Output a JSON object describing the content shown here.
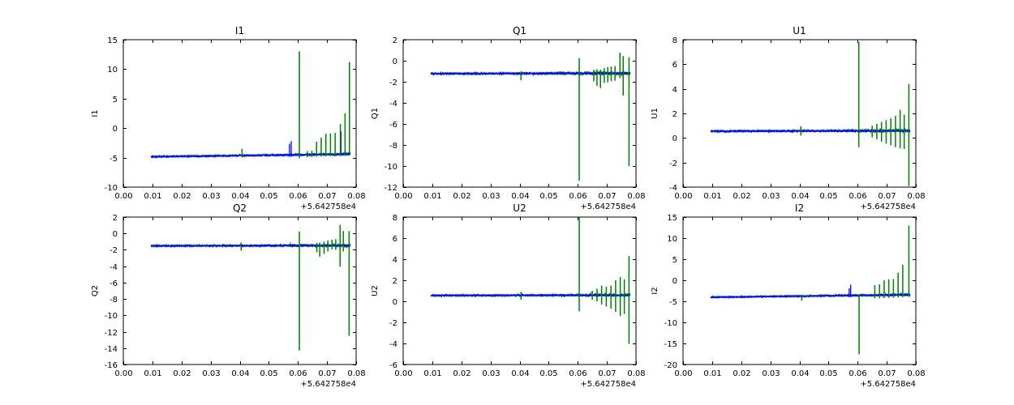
{
  "figure": {
    "background": "#ffffff",
    "x_offset_label": "+5.642758e4",
    "xtick_labels": [
      "0.00",
      "0.01",
      "0.02",
      "0.03",
      "0.04",
      "0.05",
      "0.06",
      "0.07",
      "0.08"
    ],
    "colors": {
      "trace_blue": "#0000ff",
      "trace_green": "#008000",
      "axis": "#000000"
    }
  },
  "chart_data": [
    {
      "type": "line",
      "title": "I1",
      "ylabel": "I1",
      "xlabel": "",
      "x_offset": "+5.642758e4",
      "grid": false,
      "legend": null,
      "xlim": [
        0.0,
        0.08
      ],
      "ylim": [
        -10,
        15
      ],
      "xticks": [
        0.0,
        0.01,
        0.02,
        0.03,
        0.04,
        0.05,
        0.06,
        0.07,
        0.08
      ],
      "xtick_labels": [
        "0.00",
        "0.01",
        "0.02",
        "0.03",
        "0.04",
        "0.05",
        "0.06",
        "0.07",
        "0.08"
      ],
      "yticks": [
        -10,
        -5,
        0,
        5,
        10,
        15
      ],
      "ytick_labels": [
        "-10",
        "-5",
        "0",
        "5",
        "10",
        "15"
      ],
      "x_data_range": [
        0.0095,
        0.078
      ],
      "series": [
        {
          "name": "green-trace",
          "color": "#008000",
          "baseline": [
            -4.83,
            -4.4
          ],
          "noise_amp": 0.17,
          "spikes": [
            [
              0.0408,
              -4.95,
              -3.5
            ],
            [
              0.0605,
              -5.1,
              13.0
            ],
            [
              0.0632,
              -4.9,
              -3.9
            ],
            [
              0.0648,
              -4.9,
              -3.8
            ],
            [
              0.0664,
              -4.8,
              -2.3
            ],
            [
              0.068,
              -4.8,
              -1.6
            ],
            [
              0.0696,
              -4.75,
              -0.95
            ],
            [
              0.0712,
              -4.75,
              -0.9
            ],
            [
              0.0728,
              -4.7,
              -0.8
            ],
            [
              0.0746,
              -4.7,
              0.7
            ],
            [
              0.0762,
              -4.65,
              2.5
            ],
            [
              0.0777,
              -4.6,
              11.2
            ]
          ]
        },
        {
          "name": "blue-trace",
          "color": "#0000ff",
          "baseline": [
            -4.85,
            -4.42
          ],
          "noise_amp": 0.17,
          "spikes": [
            [
              0.0571,
              -4.85,
              -2.65
            ],
            [
              0.0577,
              -4.85,
              -2.2
            ],
            [
              0.0748,
              -4.7,
              -0.55
            ]
          ]
        }
      ]
    },
    {
      "type": "line",
      "title": "Q1",
      "ylabel": "Q1",
      "xlabel": "",
      "x_offset": "+5.642758e4",
      "grid": false,
      "legend": null,
      "xlim": [
        0.0,
        0.08
      ],
      "ylim": [
        -12,
        2
      ],
      "xticks": [
        0.0,
        0.01,
        0.02,
        0.03,
        0.04,
        0.05,
        0.06,
        0.07,
        0.08
      ],
      "xtick_labels": [
        "0.00",
        "0.01",
        "0.02",
        "0.03",
        "0.04",
        "0.05",
        "0.06",
        "0.07",
        "0.08"
      ],
      "yticks": [
        -12,
        -10,
        -8,
        -6,
        -4,
        -2,
        0,
        2
      ],
      "ytick_labels": [
        "-12",
        "-10",
        "-8",
        "-6",
        "-4",
        "-2",
        "0",
        "2"
      ],
      "x_data_range": [
        0.0095,
        0.078
      ],
      "series": [
        {
          "name": "green-trace",
          "color": "#008000",
          "baseline": [
            -1.22,
            -1.18
          ],
          "noise_amp": 0.13,
          "spikes": [
            [
              0.0405,
              -1.85,
              -1.05
            ],
            [
              0.0605,
              -11.4,
              0.25
            ],
            [
              0.0655,
              -1.95,
              -0.85
            ],
            [
              0.0666,
              -2.4,
              -0.8
            ],
            [
              0.0678,
              -2.6,
              -0.85
            ],
            [
              0.0691,
              -2.1,
              -0.7
            ],
            [
              0.0703,
              -2.05,
              -0.6
            ],
            [
              0.0715,
              -1.95,
              -0.55
            ],
            [
              0.0728,
              -1.9,
              -0.5
            ],
            [
              0.0745,
              -1.65,
              0.77
            ],
            [
              0.0756,
              -3.3,
              0.45
            ],
            [
              0.0776,
              -10.0,
              0.35
            ]
          ]
        },
        {
          "name": "blue-trace",
          "color": "#0000ff",
          "baseline": [
            -1.23,
            -1.19
          ],
          "noise_amp": 0.13,
          "spikes": []
        }
      ]
    },
    {
      "type": "line",
      "title": "U1",
      "ylabel": "U1",
      "xlabel": "",
      "x_offset": "+5.642758e4",
      "grid": false,
      "legend": null,
      "xlim": [
        0.0,
        0.08
      ],
      "ylim": [
        -4,
        8
      ],
      "xticks": [
        0.0,
        0.01,
        0.02,
        0.03,
        0.04,
        0.05,
        0.06,
        0.07,
        0.08
      ],
      "xtick_labels": [
        "0.00",
        "0.01",
        "0.02",
        "0.03",
        "0.04",
        "0.05",
        "0.06",
        "0.07",
        "0.08"
      ],
      "yticks": [
        -4,
        -2,
        0,
        2,
        4,
        6,
        8
      ],
      "ytick_labels": [
        "-4",
        "-2",
        "0",
        "2",
        "4",
        "6",
        "8"
      ],
      "x_data_range": [
        0.0095,
        0.078
      ],
      "series": [
        {
          "name": "green-trace",
          "color": "#008000",
          "baseline": [
            0.56,
            0.6
          ],
          "noise_amp": 0.1,
          "spikes": [
            [
              0.0405,
              0.2,
              0.95
            ],
            [
              0.0604,
              -0.75,
              7.8
            ],
            [
              0.065,
              0.05,
              1.0
            ],
            [
              0.0666,
              -0.1,
              1.15
            ],
            [
              0.0682,
              -0.3,
              1.3
            ],
            [
              0.0698,
              -0.45,
              1.45
            ],
            [
              0.0714,
              -0.6,
              1.6
            ],
            [
              0.073,
              -0.75,
              1.8
            ],
            [
              0.0746,
              -0.85,
              2.3
            ],
            [
              0.076,
              -0.9,
              1.9
            ],
            [
              0.0776,
              -3.9,
              4.4
            ]
          ]
        },
        {
          "name": "blue-trace",
          "color": "#0000ff",
          "baseline": [
            0.55,
            0.58
          ],
          "noise_amp": 0.1,
          "spikes": []
        }
      ]
    },
    {
      "type": "line",
      "title": "Q2",
      "ylabel": "Q2",
      "xlabel": "",
      "x_offset": "+5.642758e4",
      "grid": false,
      "legend": null,
      "xlim": [
        0.0,
        0.08
      ],
      "ylim": [
        -16,
        2
      ],
      "xticks": [
        0.0,
        0.01,
        0.02,
        0.03,
        0.04,
        0.05,
        0.06,
        0.07,
        0.08
      ],
      "xtick_labels": [
        "0.00",
        "0.01",
        "0.02",
        "0.03",
        "0.04",
        "0.05",
        "0.06",
        "0.07",
        "0.08"
      ],
      "yticks": [
        -16,
        -14,
        -12,
        -10,
        -8,
        -6,
        -4,
        -2,
        0,
        2
      ],
      "ytick_labels": [
        "-16",
        "-14",
        "-12",
        "-10",
        "-8",
        "-6",
        "-4",
        "-2",
        "0",
        "2"
      ],
      "x_data_range": [
        0.0095,
        0.078
      ],
      "series": [
        {
          "name": "green-trace",
          "color": "#008000",
          "baseline": [
            -1.5,
            -1.46
          ],
          "noise_amp": 0.14,
          "spikes": [
            [
              0.0405,
              -2.1,
              -1.1
            ],
            [
              0.0605,
              -14.3,
              0.25
            ],
            [
              0.0665,
              -2.3,
              -1.15
            ],
            [
              0.0675,
              -2.85,
              -1.1
            ],
            [
              0.069,
              -2.5,
              -1.0
            ],
            [
              0.0703,
              -2.2,
              -0.85
            ],
            [
              0.0717,
              -1.95,
              -0.75
            ],
            [
              0.073,
              -2.0,
              -0.7
            ],
            [
              0.0745,
              -4.05,
              1.05
            ],
            [
              0.0756,
              -2.2,
              0.3
            ],
            [
              0.0776,
              -12.5,
              0.3
            ]
          ]
        },
        {
          "name": "blue-trace",
          "color": "#0000ff",
          "baseline": [
            -1.52,
            -1.48
          ],
          "noise_amp": 0.14,
          "spikes": []
        }
      ]
    },
    {
      "type": "line",
      "title": "U2",
      "ylabel": "U2",
      "xlabel": "",
      "x_offset": "+5.642758e4",
      "grid": false,
      "legend": null,
      "xlim": [
        0.0,
        0.08
      ],
      "ylim": [
        -6,
        8
      ],
      "xticks": [
        0.0,
        0.01,
        0.02,
        0.03,
        0.04,
        0.05,
        0.06,
        0.07,
        0.08
      ],
      "xtick_labels": [
        "0.00",
        "0.01",
        "0.02",
        "0.03",
        "0.04",
        "0.05",
        "0.06",
        "0.07",
        "0.08"
      ],
      "yticks": [
        -6,
        -4,
        -2,
        0,
        2,
        4,
        6,
        8
      ],
      "ytick_labels": [
        "-6",
        "-4",
        "-2",
        "0",
        "2",
        "4",
        "6",
        "8"
      ],
      "x_data_range": [
        0.0095,
        0.078
      ],
      "series": [
        {
          "name": "green-trace",
          "color": "#008000",
          "baseline": [
            0.56,
            0.6
          ],
          "noise_amp": 0.1,
          "spikes": [
            [
              0.0405,
              0.15,
              0.9
            ],
            [
              0.0605,
              -0.95,
              7.95
            ],
            [
              0.065,
              0.15,
              1.0
            ],
            [
              0.0666,
              0.0,
              1.2
            ],
            [
              0.0682,
              -0.3,
              1.5
            ],
            [
              0.0698,
              -0.5,
              1.4
            ],
            [
              0.0714,
              -0.7,
              1.5
            ],
            [
              0.073,
              -1.0,
              2.0
            ],
            [
              0.0746,
              -1.4,
              2.3
            ],
            [
              0.076,
              -1.2,
              2.1
            ],
            [
              0.0776,
              -4.05,
              4.3
            ]
          ]
        },
        {
          "name": "blue-trace",
          "color": "#0000ff",
          "baseline": [
            0.55,
            0.58
          ],
          "noise_amp": 0.1,
          "spikes": []
        }
      ]
    },
    {
      "type": "line",
      "title": "I2",
      "ylabel": "I2",
      "xlabel": "",
      "x_offset": "+5.642758e4",
      "grid": false,
      "legend": null,
      "xlim": [
        0.0,
        0.08
      ],
      "ylim": [
        -20,
        15
      ],
      "xticks": [
        0.0,
        0.01,
        0.02,
        0.03,
        0.04,
        0.05,
        0.06,
        0.07,
        0.08
      ],
      "xtick_labels": [
        "0.00",
        "0.01",
        "0.02",
        "0.03",
        "0.04",
        "0.05",
        "0.06",
        "0.07",
        "0.08"
      ],
      "yticks": [
        -20,
        -15,
        -10,
        -5,
        0,
        5,
        10,
        15
      ],
      "ytick_labels": [
        "-20",
        "-15",
        "-10",
        "-5",
        "0",
        "5",
        "10",
        "15"
      ],
      "x_data_range": [
        0.0095,
        0.078
      ],
      "series": [
        {
          "name": "green-trace",
          "color": "#008000",
          "baseline": [
            -4.02,
            -3.4
          ],
          "noise_amp": 0.2,
          "spikes": [
            [
              0.0408,
              -4.85,
              -3.6
            ],
            [
              0.0605,
              -17.6,
              -3.5
            ],
            [
              0.0659,
              -4.3,
              -1.15
            ],
            [
              0.0675,
              -4.3,
              -0.95
            ],
            [
              0.0691,
              -4.25,
              0.0
            ],
            [
              0.0707,
              -4.2,
              0.25
            ],
            [
              0.0723,
              -4.15,
              0.3
            ],
            [
              0.0739,
              -4.1,
              1.8
            ],
            [
              0.0755,
              -4.0,
              3.7
            ],
            [
              0.0776,
              -3.95,
              13.0
            ]
          ]
        },
        {
          "name": "blue-trace",
          "color": "#0000ff",
          "baseline": [
            -4.05,
            -3.45
          ],
          "noise_amp": 0.2,
          "spikes": [
            [
              0.0571,
              -4.0,
              -1.9
            ],
            [
              0.0576,
              -4.05,
              -1.05
            ]
          ]
        }
      ]
    }
  ]
}
